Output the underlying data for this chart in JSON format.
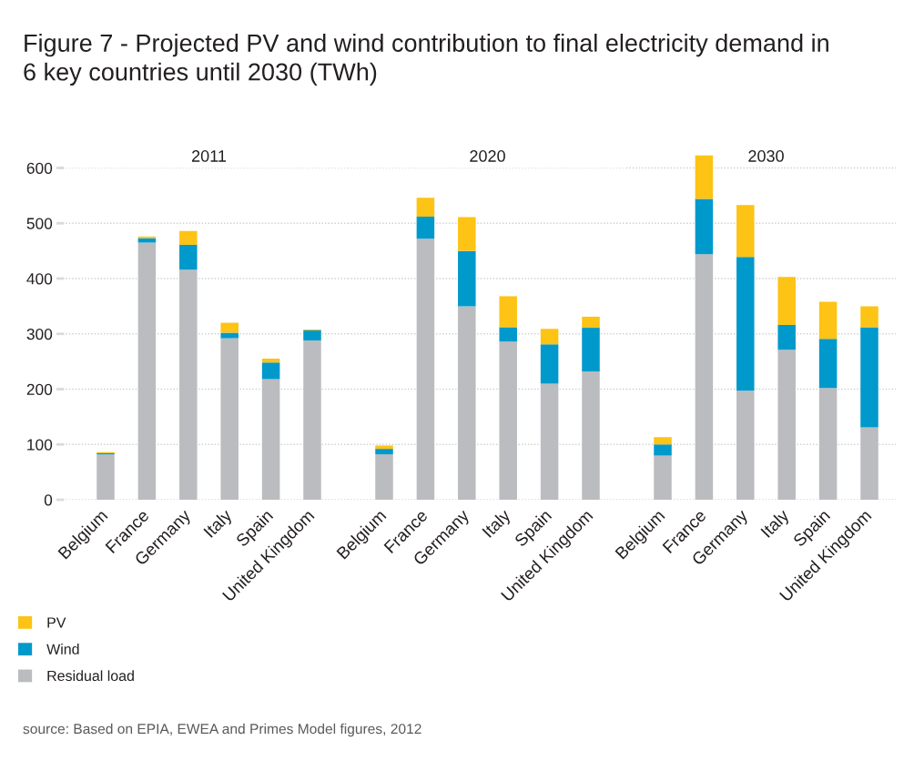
{
  "chart_data": [
    {
      "type": "other",
      "title": "Figure 7 - Projected PV and wind contribution to final electricity demand in 6 key countries until 2030 (TWh)",
      "annotations": [
        "source: Based on EPIA, EWEA and Primes Model figures, 2012"
      ]
    },
    {
      "type": "bar",
      "title": "2011",
      "stacked": true,
      "categories": [
        "Belgium",
        "France",
        "Germany",
        "Italy",
        "Spain",
        "United Kingdom"
      ],
      "series": [
        {
          "name": "Residual load",
          "color": "#bbbcbf",
          "values": [
            82,
            465,
            416,
            292,
            218,
            288
          ]
        },
        {
          "name": "Wind",
          "color": "#0099cc",
          "values": [
            2,
            8,
            45,
            10,
            30,
            18
          ]
        },
        {
          "name": "PV",
          "color": "#fdc315",
          "values": [
            2,
            3,
            25,
            18,
            7,
            2
          ]
        }
      ],
      "ylim": [
        0,
        600
      ],
      "yticks": [
        0,
        100,
        200,
        300,
        400,
        500,
        600
      ],
      "grid": "y",
      "legend": "bottom left"
    },
    {
      "type": "bar",
      "title": "2020",
      "stacked": true,
      "categories": [
        "Belgium",
        "France",
        "Germany",
        "Italy",
        "Spain",
        "United Kingdom"
      ],
      "series": [
        {
          "color": "#bbbcbf",
          "values": [
            82,
            472,
            350,
            286,
            210,
            232
          ]
        },
        {
          "color": "#0099cc",
          "values": [
            10,
            40,
            100,
            26,
            71,
            79
          ]
        },
        {
          "color": "#fdc315",
          "values": [
            6,
            34,
            61,
            56,
            28,
            20
          ]
        }
      ],
      "ylim": [
        0,
        600
      ],
      "yticks": [
        0,
        100,
        200,
        300,
        400,
        500,
        600
      ],
      "grid": "y",
      "tick_labels": "x"
    },
    {
      "type": "bar",
      "title": "2030",
      "stacked": true,
      "categories": [
        "Belgium",
        "France",
        "Germany",
        "Italy",
        "Spain",
        "United Kingdom"
      ],
      "series": [
        {
          "color": "#bbbcbf",
          "values": [
            80,
            444,
            197,
            271,
            202,
            131
          ]
        },
        {
          "color": "#0099cc",
          "values": [
            20,
            100,
            242,
            45,
            89,
            181
          ]
        },
        {
          "color": "#fdc315",
          "values": [
            13,
            79,
            94,
            87,
            67,
            38
          ]
        }
      ],
      "ylim": [
        0,
        623
      ],
      "yticks": [
        0,
        100,
        200,
        300,
        400,
        500,
        600
      ],
      "grid": "y",
      "tick_labels": "x"
    }
  ]
}
